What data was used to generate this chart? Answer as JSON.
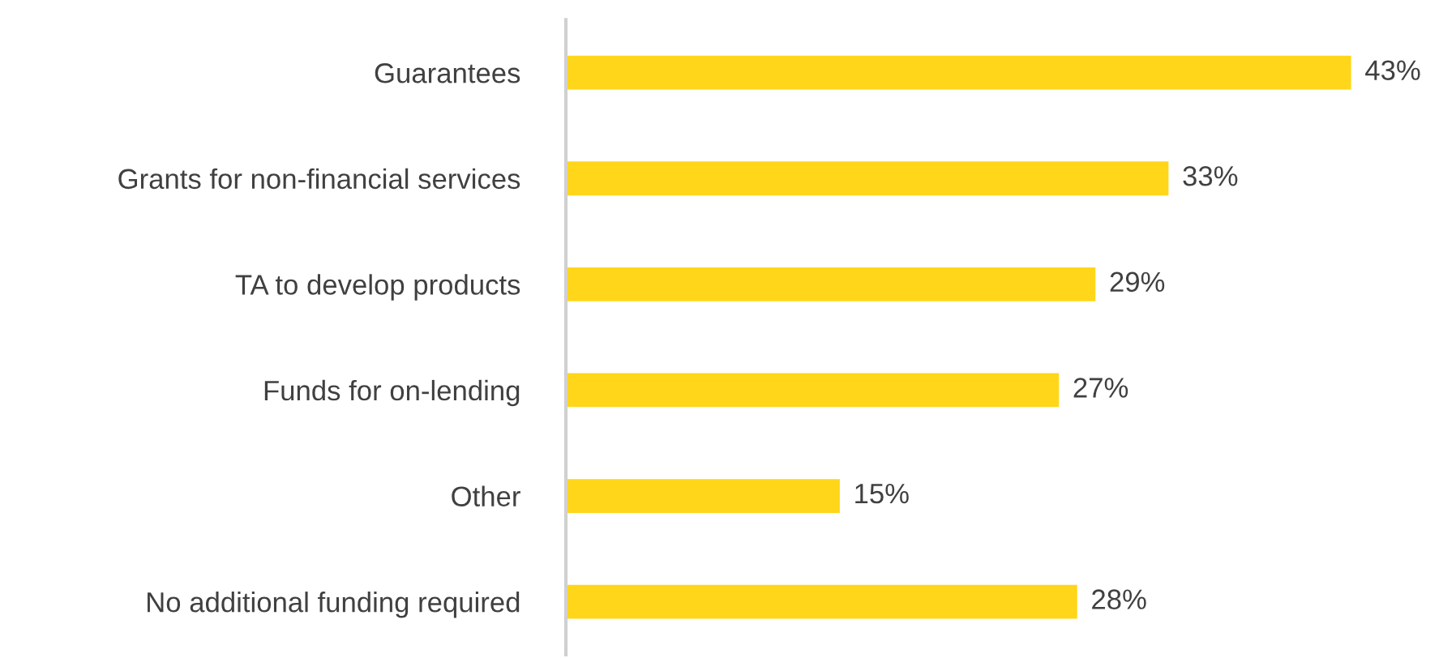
{
  "chart_data": {
    "type": "bar",
    "orientation": "horizontal",
    "categories": [
      "Guarantees",
      "Grants for non-financial services",
      "TA to develop products",
      "Funds for on-lending",
      "Other",
      "No additional funding required"
    ],
    "values": [
      43,
      33,
      29,
      27,
      15,
      28
    ],
    "value_labels": [
      "43%",
      "33%",
      "29%",
      "27%",
      "15%",
      "28%"
    ],
    "color": "#ffd619",
    "grid": false,
    "legend": false
  }
}
